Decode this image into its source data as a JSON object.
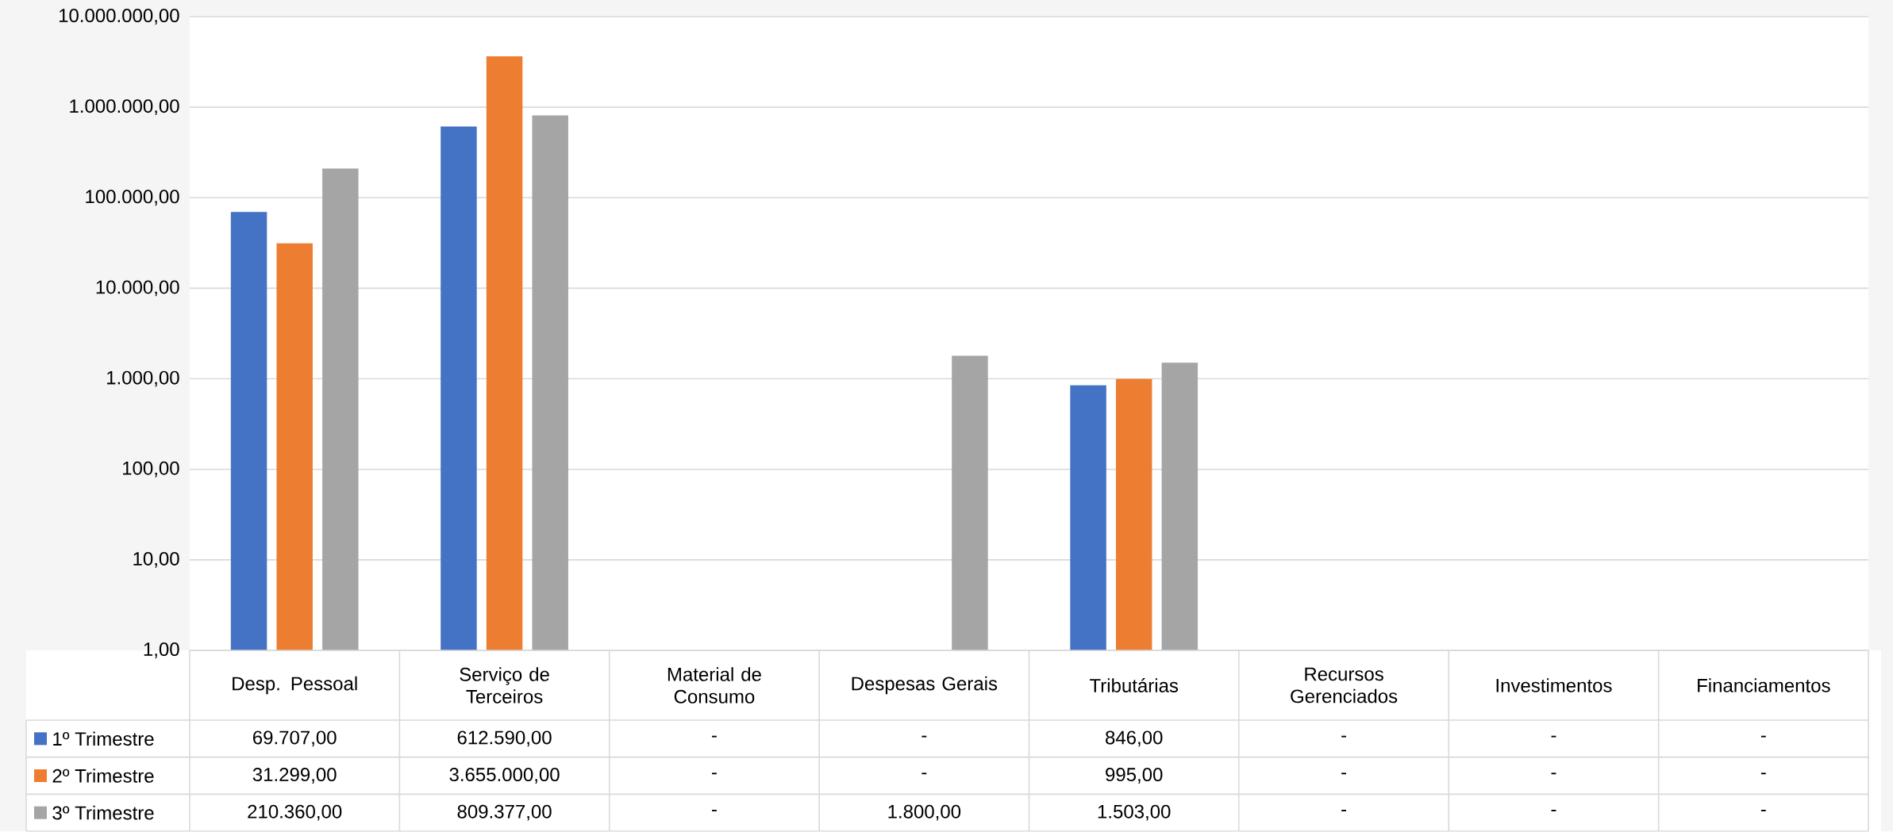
{
  "chart_data": {
    "type": "bar",
    "log": "y",
    "grid": "y",
    "legend": "bottom",
    "categories": [
      "Desp. Pessoal",
      "Serviço de Terceiros",
      "Material de Consumo",
      "Despesas Gerais",
      "Tributárias",
      "Recursos Gerenciados",
      "Investimentos",
      "Financiamentos"
    ],
    "ylim": [
      1,
      10000000
    ],
    "yticks": [
      {
        "value": 1,
        "label": "1,00"
      },
      {
        "value": 10,
        "label": "10,00"
      },
      {
        "value": 100,
        "label": "100,00"
      },
      {
        "value": 1000,
        "label": "1.000,00"
      },
      {
        "value": 10000,
        "label": "10.000,00"
      },
      {
        "value": 100000,
        "label": "100.000,00"
      },
      {
        "value": 1000000,
        "label": "1.000.000,00"
      },
      {
        "value": 10000000,
        "label": "10.000.000,00"
      }
    ],
    "series": [
      {
        "name": "1º Trimestre",
        "color": "#4472c4",
        "values": [
          69707,
          612590,
          null,
          null,
          846,
          null,
          null,
          null
        ],
        "value_labels": [
          "69.707,00",
          "612.590,00",
          "-",
          "-",
          "846,00",
          "-",
          "-",
          "-"
        ]
      },
      {
        "name": "2º Trimestre",
        "color": "#ed7d31",
        "values": [
          31299,
          3655000,
          null,
          null,
          995,
          null,
          null,
          null
        ],
        "value_labels": [
          "31.299,00",
          "3.655.000,00",
          "-",
          "-",
          "995,00",
          "-",
          "-",
          "-"
        ]
      },
      {
        "name": "3º Trimestre",
        "color": "#a5a5a5",
        "values": [
          210360,
          809377,
          null,
          1800,
          1503,
          null,
          null,
          null
        ],
        "value_labels": [
          "210.360,00",
          "809.377,00",
          "-",
          "1.800,00",
          "1.503,00",
          "-",
          "-",
          "-"
        ]
      }
    ]
  }
}
